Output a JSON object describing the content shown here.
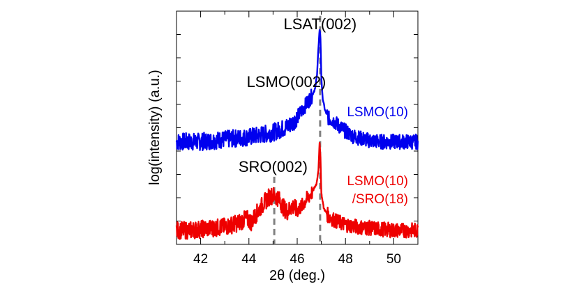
{
  "chart_data": {
    "type": "line",
    "title": "",
    "xlabel": "2θ (deg.)",
    "ylabel": "log(intensity) (a.u.)",
    "xlim": [
      41,
      51
    ],
    "xticks": [
      "42",
      "44",
      "46",
      "48",
      "50"
    ],
    "y_axis_units": "log(a.u.)",
    "ylim": [
      0,
      10
    ],
    "y_tick_label_shown": false,
    "grid": false,
    "legend": "none (series labelled in-plot, right side)",
    "reference_lines": [
      {
        "label": "LSAT(002)",
        "x": 46.95,
        "style": "dashed",
        "color": "#808080"
      },
      {
        "label": "SRO(002)",
        "x": 45.05,
        "style": "dashed",
        "color": "#808080"
      }
    ],
    "annotations": [
      {
        "text": "LSAT(002)",
        "x": 46.95
      },
      {
        "text": "LSMO(002)",
        "x": 46.85
      },
      {
        "text": "SRO(002)",
        "x": 45.05
      }
    ],
    "series": [
      {
        "label_lines": [
          "LSMO(10)"
        ],
        "color": "#0000ee",
        "points": [
          [
            41.0,
            4.4
          ],
          [
            41.5,
            4.4
          ],
          [
            42.0,
            4.4
          ],
          [
            42.5,
            4.45
          ],
          [
            43.0,
            4.5
          ],
          [
            43.5,
            4.55
          ],
          [
            44.0,
            4.6
          ],
          [
            44.5,
            4.7
          ],
          [
            45.0,
            4.8
          ],
          [
            45.5,
            5.0
          ],
          [
            45.8,
            5.2
          ],
          [
            46.0,
            5.45
          ],
          [
            46.2,
            5.75
          ],
          [
            46.4,
            6.05
          ],
          [
            46.6,
            6.35
          ],
          [
            46.75,
            6.7
          ],
          [
            46.82,
            7.3
          ],
          [
            46.88,
            8.4
          ],
          [
            46.93,
            9.25
          ],
          [
            46.96,
            9.0
          ],
          [
            47.0,
            7.2
          ],
          [
            47.05,
            6.3
          ],
          [
            47.15,
            5.75
          ],
          [
            47.3,
            5.4
          ],
          [
            47.5,
            5.3
          ],
          [
            47.7,
            5.1
          ],
          [
            48.0,
            4.85
          ],
          [
            48.3,
            4.65
          ],
          [
            48.6,
            4.55
          ],
          [
            49.0,
            4.45
          ],
          [
            49.5,
            4.4
          ],
          [
            50.0,
            4.4
          ],
          [
            50.5,
            4.4
          ],
          [
            51.0,
            4.4
          ]
        ]
      },
      {
        "label_lines": [
          "LSMO(10)",
          "/SRO(18)"
        ],
        "color": "#ee0000",
        "points": [
          [
            41.0,
            0.6
          ],
          [
            41.5,
            0.6
          ],
          [
            42.0,
            0.65
          ],
          [
            42.5,
            0.7
          ],
          [
            43.0,
            0.75
          ],
          [
            43.5,
            0.9
          ],
          [
            43.9,
            1.1
          ],
          [
            44.1,
            0.95
          ],
          [
            44.3,
            1.3
          ],
          [
            44.6,
            1.75
          ],
          [
            44.85,
            2.05
          ],
          [
            45.0,
            2.1
          ],
          [
            45.2,
            2.0
          ],
          [
            45.45,
            1.55
          ],
          [
            45.6,
            1.4
          ],
          [
            45.8,
            1.65
          ],
          [
            46.0,
            1.45
          ],
          [
            46.2,
            1.65
          ],
          [
            46.4,
            1.95
          ],
          [
            46.6,
            2.2
          ],
          [
            46.8,
            2.6
          ],
          [
            46.88,
            3.2
          ],
          [
            46.93,
            4.4
          ],
          [
            46.96,
            3.9
          ],
          [
            47.0,
            2.2
          ],
          [
            47.1,
            1.55
          ],
          [
            47.3,
            1.2
          ],
          [
            47.6,
            1.0
          ],
          [
            48.0,
            0.85
          ],
          [
            48.5,
            0.75
          ],
          [
            49.0,
            0.7
          ],
          [
            49.5,
            0.65
          ],
          [
            50.0,
            0.6
          ],
          [
            50.5,
            0.6
          ],
          [
            51.0,
            0.6
          ]
        ]
      }
    ]
  }
}
